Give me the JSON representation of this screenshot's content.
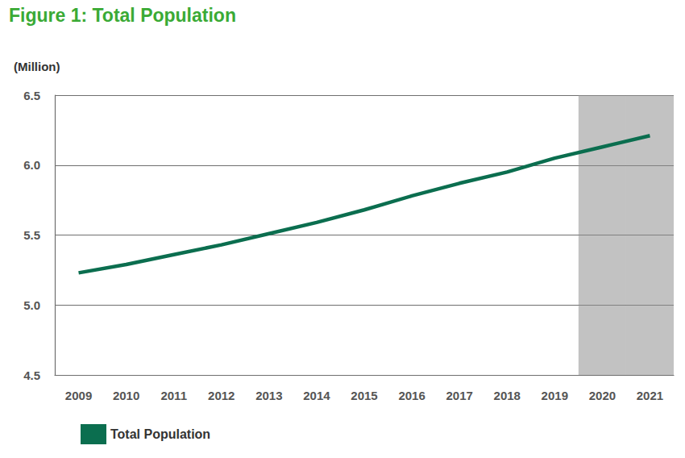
{
  "chart_data": {
    "type": "line",
    "title": "Figure 1: Total Population",
    "ylabel": "(Million)",
    "categories": [
      "2009",
      "2010",
      "2011",
      "2012",
      "2013",
      "2014",
      "2015",
      "2016",
      "2017",
      "2018",
      "2019",
      "2020",
      "2021"
    ],
    "series": [
      {
        "name": "Total Population",
        "color": "#0b6e4f",
        "values": [
          5.23,
          5.29,
          5.36,
          5.43,
          5.51,
          5.59,
          5.68,
          5.78,
          5.87,
          5.95,
          6.05,
          6.13,
          6.21
        ]
      }
    ],
    "shaded_categories": [
      "2020",
      "2021"
    ],
    "ylim": [
      4.5,
      6.5
    ],
    "yticks": [
      4.5,
      {
        "value": 5,
        "label": "5.0"
      },
      5.5,
      {
        "value": 6,
        "label": "6.0"
      },
      6.5
    ],
    "grid": true,
    "legend": "bottom-left"
  }
}
